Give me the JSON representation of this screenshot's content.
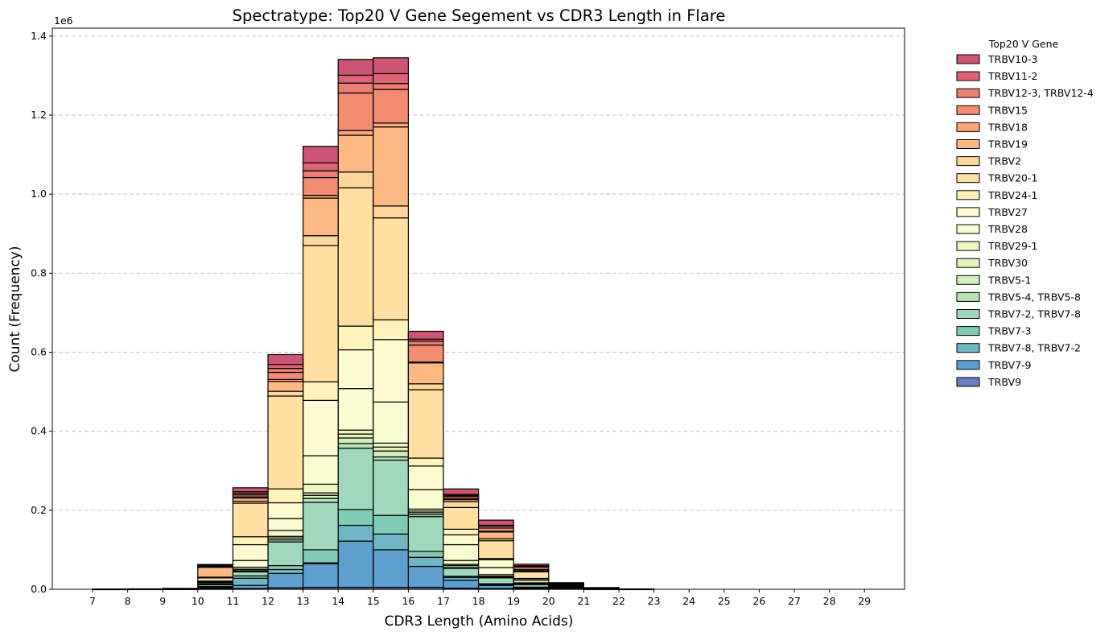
{
  "chart_data": {
    "type": "bar",
    "stacked": true,
    "title": "Spectratype: Top20 V Gene Segement vs CDR3 Length in Flare",
    "xlabel": "CDR3 Length (Amino Acids)",
    "ylabel": "Count (Frequency)",
    "y_scale_label": "1e6",
    "ylim": [
      0,
      1.42
    ],
    "yticks": [
      0.0,
      0.2,
      0.4,
      0.6,
      0.8,
      1.0,
      1.2,
      1.4
    ],
    "grid": "horizontal dashed",
    "legend_title": "Top20 V Gene",
    "legend_placement": "outside right",
    "categories": [
      "7",
      "8",
      "9",
      "10",
      "11",
      "12",
      "13",
      "14",
      "15",
      "16",
      "17",
      "18",
      "19",
      "20",
      "21",
      "22",
      "23",
      "24",
      "25",
      "26",
      "27",
      "28",
      "29"
    ],
    "series": [
      {
        "name": "TRBV9",
        "color": "#6a7fc0",
        "values": [
          0,
          0,
          0,
          0.001,
          0.002,
          0.004,
          0.005,
          0.005,
          0.005,
          0.005,
          0.003,
          0.002,
          0.001,
          0,
          0,
          0,
          0,
          0,
          0,
          0,
          0,
          0,
          0
        ]
      },
      {
        "name": "TRBV7-9",
        "color": "#5e9fd0",
        "values": [
          0.0002,
          0.0003,
          0.0005,
          0.003,
          0.008,
          0.036,
          0.06,
          0.117,
          0.095,
          0.053,
          0.02,
          0.008,
          0.003,
          0.0015,
          0.0005,
          0.0003,
          0,
          0,
          0,
          0,
          0,
          0,
          0
        ]
      },
      {
        "name": "TRBV7-8, TRBV7-2",
        "color": "#70b5c4",
        "values": [
          0,
          0,
          0.0002,
          0.002,
          0.018,
          0.01,
          0.002,
          0.04,
          0.04,
          0.023,
          0.007,
          0.003,
          0.001,
          0.0005,
          0.0002,
          0,
          0,
          0,
          0,
          0,
          0,
          0,
          0
        ]
      },
      {
        "name": "TRBV7-3",
        "color": "#80cbb3",
        "values": [
          0,
          0,
          0,
          0.001,
          0.006,
          0.01,
          0.033,
          0.04,
          0.047,
          0.015,
          0.003,
          0.001,
          0.0005,
          0.0002,
          0,
          0,
          0,
          0,
          0,
          0,
          0,
          0,
          0
        ]
      },
      {
        "name": "TRBV7-2, TRBV7-8",
        "color": "#9fd8bd",
        "values": [
          0.0002,
          0.0003,
          0.0005,
          0.005,
          0.01,
          0.06,
          0.12,
          0.155,
          0.14,
          0.088,
          0.02,
          0.015,
          0.007,
          0.002,
          0.0005,
          0.0002,
          0,
          0,
          0,
          0,
          0,
          0,
          0
        ]
      },
      {
        "name": "TRBV5-4, TRBV5-8",
        "color": "#b8e2b7",
        "values": [
          0,
          0,
          0,
          0.0005,
          0.002,
          0.005,
          0.01,
          0.012,
          0.008,
          0.005,
          0.002,
          0.001,
          0.0005,
          0,
          0,
          0,
          0,
          0,
          0,
          0,
          0,
          0,
          0
        ]
      },
      {
        "name": "TRBV5-1",
        "color": "#d2ecbb",
        "values": [
          0,
          0,
          0,
          0.0005,
          0.003,
          0.005,
          0.008,
          0.014,
          0.015,
          0.005,
          0.005,
          0.002,
          0.001,
          0.0005,
          0,
          0,
          0,
          0,
          0,
          0,
          0,
          0,
          0
        ]
      },
      {
        "name": "TRBV30",
        "color": "#e4f2b9",
        "values": [
          0,
          0,
          0,
          0.0003,
          0.002,
          0.004,
          0.006,
          0.01,
          0.01,
          0.004,
          0.003,
          0.001,
          0.0005,
          0,
          0,
          0,
          0,
          0,
          0,
          0,
          0,
          0,
          0
        ]
      },
      {
        "name": "TRBV29-1",
        "color": "#eff7c2",
        "values": [
          0.0002,
          0.0003,
          0.0005,
          0.003,
          0.005,
          0.015,
          0.022,
          0.01,
          0.01,
          0.005,
          0.01,
          0.004,
          0.002,
          0.001,
          0.0003,
          0,
          0,
          0,
          0,
          0,
          0,
          0,
          0
        ]
      },
      {
        "name": "TRBV28",
        "color": "#f8fcd0",
        "values": [
          0,
          0,
          0.0002,
          0.002,
          0.017,
          0.03,
          0.072,
          0.105,
          0.104,
          0.049,
          0.04,
          0.018,
          0.006,
          0.002,
          0.0005,
          0.0002,
          0,
          0,
          0,
          0,
          0,
          0,
          0
        ]
      },
      {
        "name": "TRBV27",
        "color": "#fdfad2",
        "values": [
          0,
          0,
          0,
          0.0015,
          0.04,
          0.04,
          0.14,
          0.098,
          0.158,
          0.06,
          0.025,
          0.02,
          0.004,
          0.001,
          0.0003,
          0,
          0,
          0,
          0,
          0,
          0,
          0,
          0
        ]
      },
      {
        "name": "TRBV24-1",
        "color": "#fef4bb",
        "values": [
          0,
          0,
          0,
          0.001,
          0.02,
          0.035,
          0.047,
          0.06,
          0.05,
          0.02,
          0.014,
          0.003,
          0.001,
          0.0005,
          0,
          0,
          0,
          0,
          0,
          0,
          0,
          0,
          0
        ]
      },
      {
        "name": "TRBV20-1",
        "color": "#fee1a2",
        "values": [
          0.0002,
          0.0003,
          0.0005,
          0.008,
          0.085,
          0.235,
          0.345,
          0.35,
          0.258,
          0.173,
          0.055,
          0.045,
          0.017,
          0.003,
          0.001,
          0.0003,
          0,
          0,
          0,
          0,
          0,
          0,
          0
        ]
      },
      {
        "name": "TRBV2",
        "color": "#fed59a",
        "values": [
          0,
          0,
          0,
          0.002,
          0.005,
          0.012,
          0.025,
          0.04,
          0.03,
          0.015,
          0.015,
          0.005,
          0.002,
          0.0005,
          0,
          0,
          0,
          0,
          0,
          0,
          0,
          0,
          0
        ]
      },
      {
        "name": "TRBV19",
        "color": "#fdb983",
        "values": [
          0,
          0,
          0,
          0.025,
          0.008,
          0.025,
          0.095,
          0.093,
          0.2,
          0.053,
          0.005,
          0.017,
          0.003,
          0.001,
          0.0003,
          0,
          0,
          0,
          0,
          0,
          0,
          0,
          0
        ]
      },
      {
        "name": "TRBV18",
        "color": "#fca679",
        "values": [
          0,
          0,
          0,
          0.002,
          0.003,
          0.005,
          0.007,
          0.012,
          0.01,
          0.002,
          0.003,
          0.002,
          0.001,
          0,
          0,
          0,
          0,
          0,
          0,
          0,
          0,
          0,
          0
        ]
      },
      {
        "name": "TRBV15",
        "color": "#f48c72",
        "values": [
          0,
          0,
          0,
          0.002,
          0.005,
          0.018,
          0.045,
          0.095,
          0.085,
          0.043,
          0.005,
          0.008,
          0.006,
          0.001,
          0.0003,
          0,
          0,
          0,
          0,
          0,
          0,
          0,
          0
        ]
      },
      {
        "name": "TRBV12-3, TRBV12-4",
        "color": "#ec7f73",
        "values": [
          0,
          0,
          0,
          0.001,
          0.004,
          0.01,
          0.017,
          0.025,
          0.015,
          0.01,
          0.002,
          0.005,
          0.002,
          0.0005,
          0,
          0,
          0,
          0,
          0,
          0,
          0,
          0,
          0
        ]
      },
      {
        "name": "TRBV11-2",
        "color": "#de6375",
        "values": [
          0,
          0,
          0,
          0.001,
          0.004,
          0.01,
          0.02,
          0.02,
          0.025,
          0.005,
          0.003,
          0.002,
          0.001,
          0.0005,
          0,
          0,
          0,
          0,
          0,
          0,
          0,
          0,
          0
        ]
      },
      {
        "name": "TRBV10-3",
        "color": "#cb5572",
        "values": [
          0,
          0,
          0,
          0.001,
          0.01,
          0.025,
          0.042,
          0.04,
          0.04,
          0.02,
          0.014,
          0.013,
          0.004,
          0.001,
          0.0005,
          0,
          0,
          0,
          0,
          0,
          0,
          0,
          0
        ]
      }
    ]
  }
}
